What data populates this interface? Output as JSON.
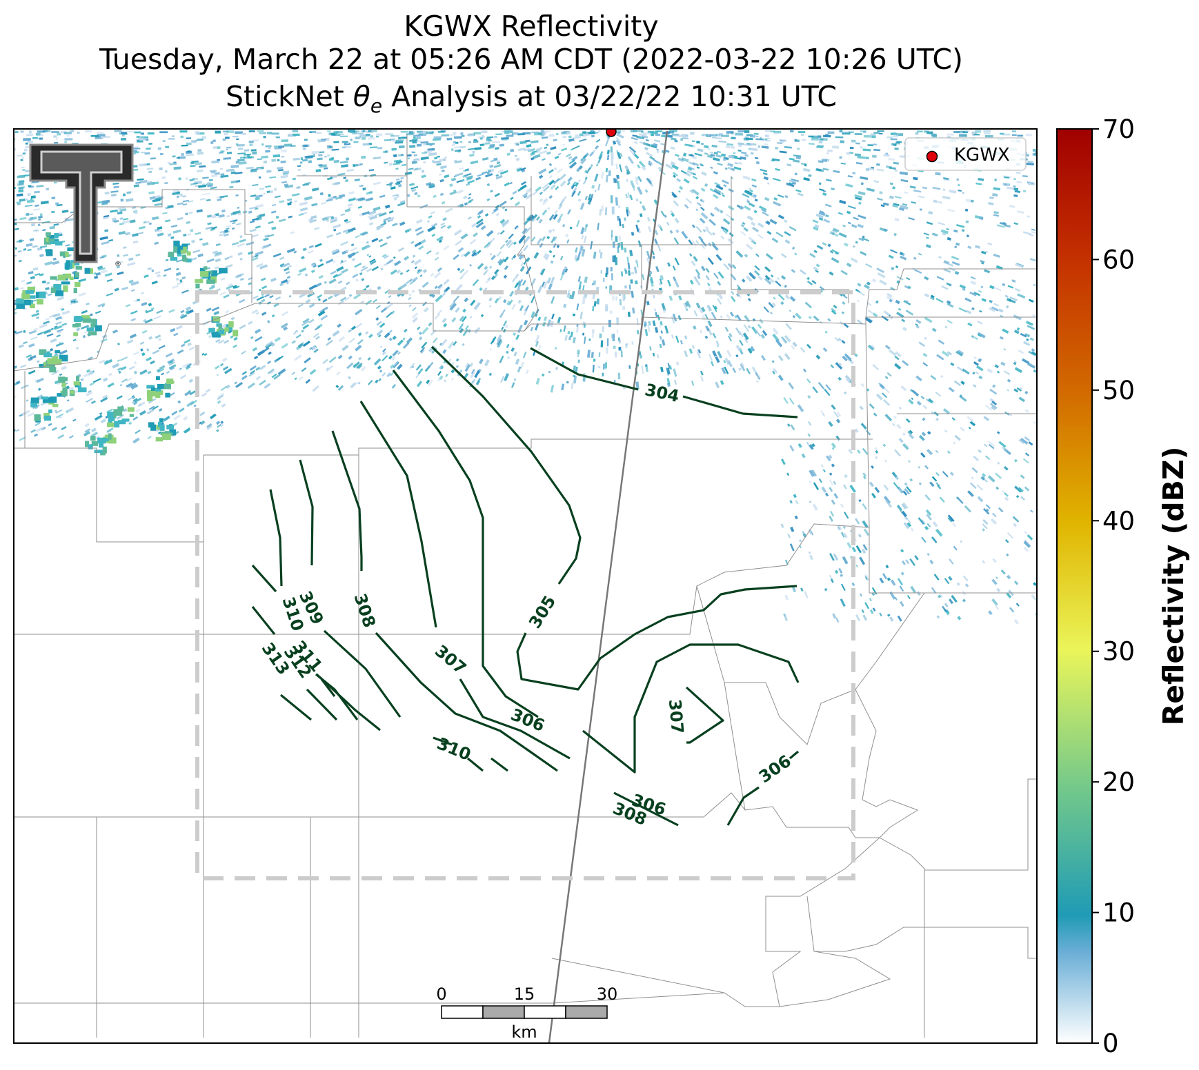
{
  "title": {
    "line1": "KGWX Reflectivity",
    "line2": "Tuesday, March 22 at 05:26 AM CDT (2022-03-22 10:26 UTC)",
    "line3_prefix": "StickNet ",
    "line3_symbol": "θ",
    "line3_subscript": "e",
    "line3_suffix": " Analysis at 03/22/22 10:31 UTC"
  },
  "legend": {
    "marker_label": "KGWX",
    "marker_color": "#e0000b"
  },
  "contours": {
    "color": "#08401f",
    "labels": [
      "304",
      "305",
      "306",
      "306",
      "306",
      "307",
      "307",
      "308",
      "308",
      "309",
      "310",
      "310",
      "311",
      "312",
      "313"
    ]
  },
  "scale_bar": {
    "ticks": [
      "0",
      "15",
      "30"
    ],
    "unit": "km"
  },
  "colorbar": {
    "label": "Reflectivity (dBZ)",
    "ticks": [
      "0",
      "10",
      "20",
      "30",
      "40",
      "50",
      "60",
      "70"
    ],
    "range": [
      0,
      70
    ],
    "colors": [
      "#ffffff",
      "#1f9bb5",
      "#74c98a",
      "#eaf55a",
      "#e0b400",
      "#d26b00",
      "#a00000"
    ]
  },
  "logo": {
    "text": "TT"
  }
}
